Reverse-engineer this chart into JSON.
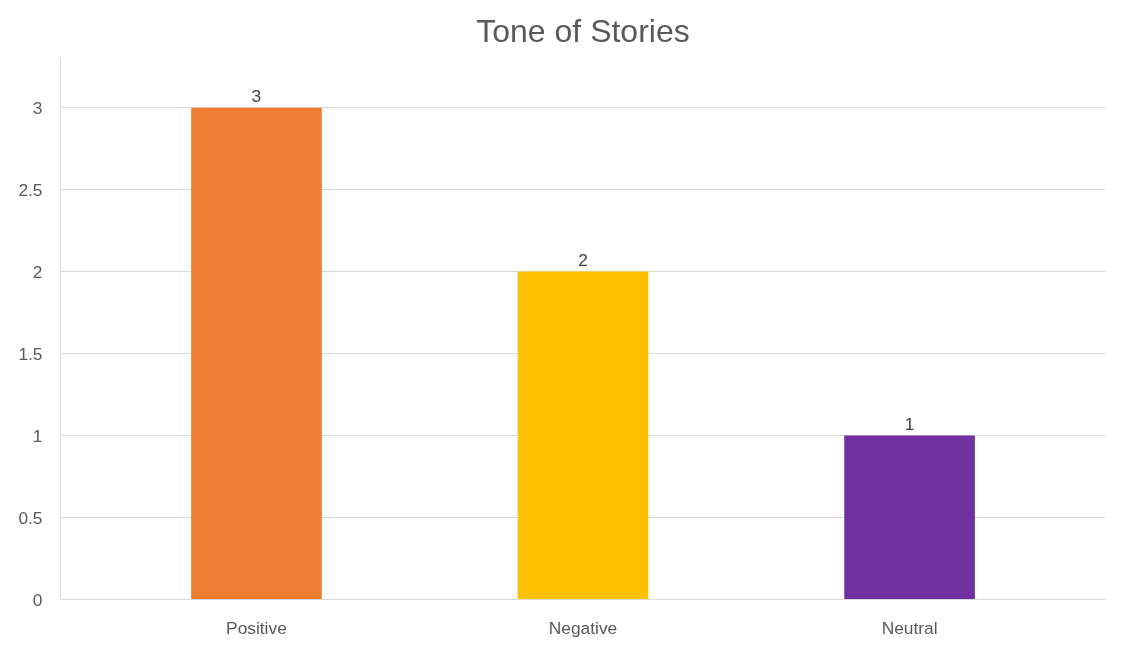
{
  "chart_data": {
    "type": "bar",
    "title": "Tone of Stories",
    "categories": [
      "Positive",
      "Negative",
      "Neutral"
    ],
    "values": [
      3,
      2,
      1
    ],
    "colors": [
      "#ed7d31",
      "#ffc000",
      "#7030a0"
    ],
    "ylim": [
      0,
      3.3
    ],
    "yticks": [
      0,
      0.5,
      1,
      1.5,
      2,
      2.5,
      3
    ],
    "grid": "y",
    "data_labels": true
  }
}
